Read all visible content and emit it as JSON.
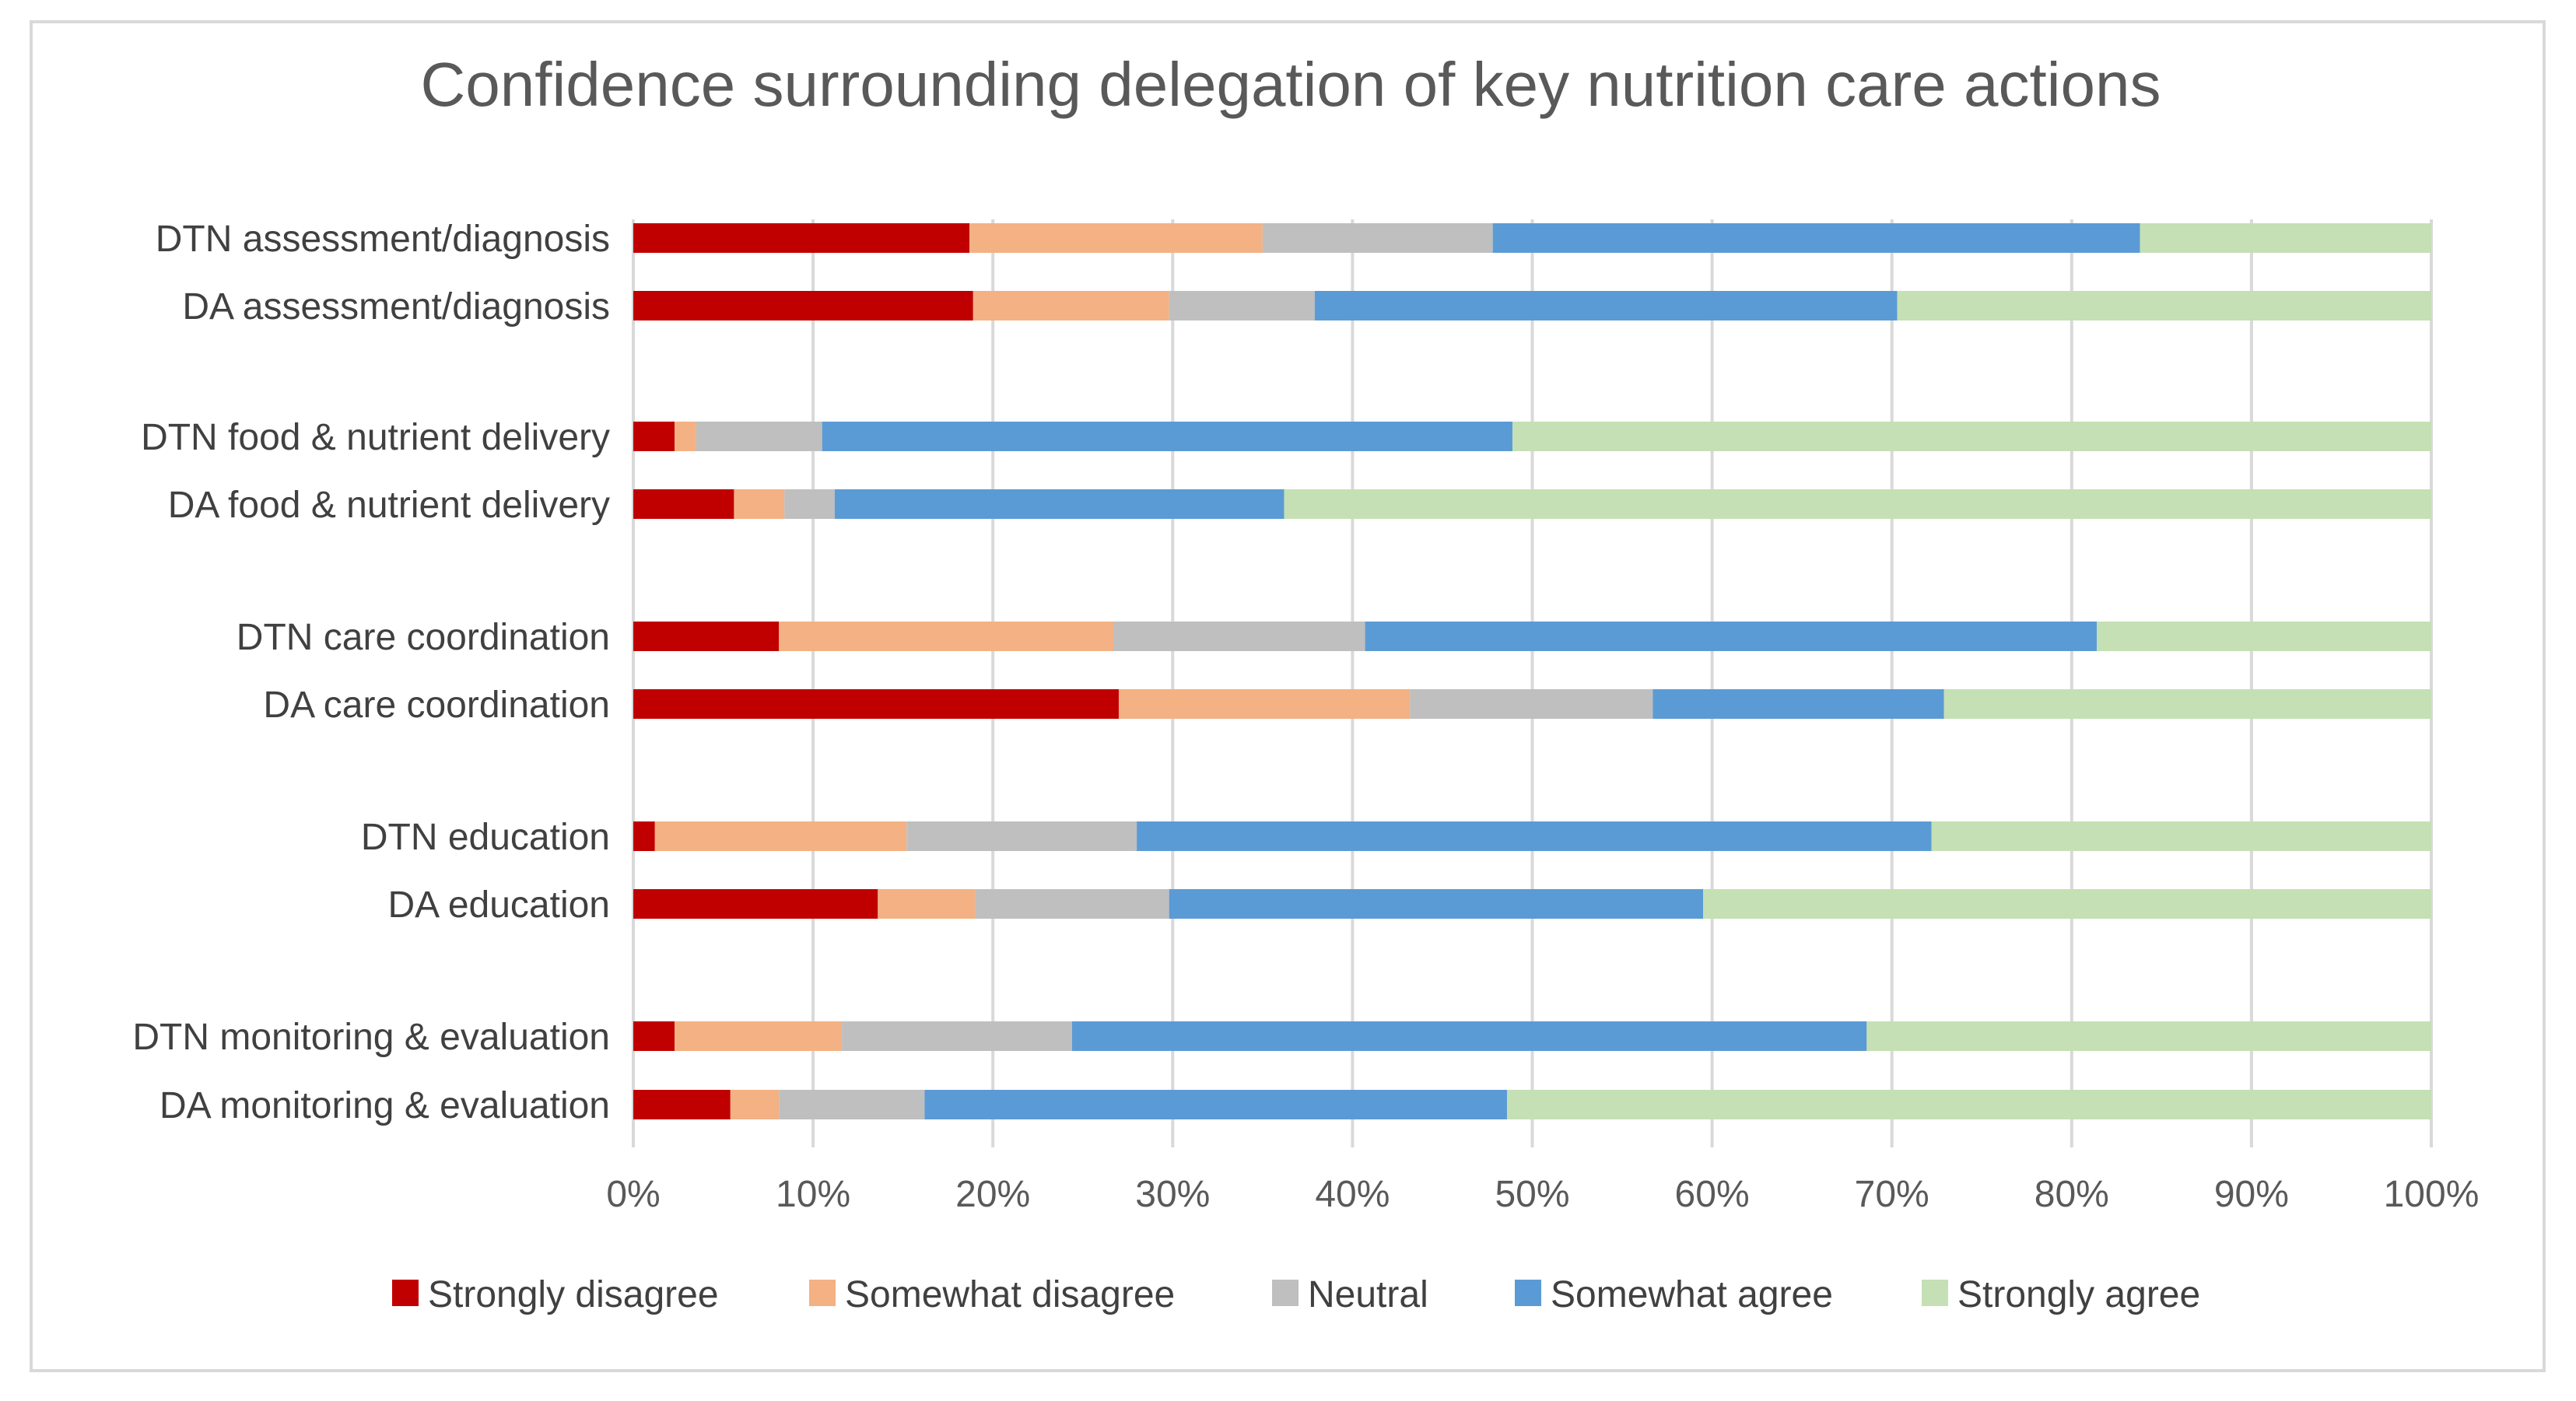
{
  "chart_data": {
    "type": "bar",
    "orientation": "horizontal",
    "stacked": "percent",
    "title": "Confidence surrounding delegation of key nutrition care actions",
    "xlabel": "",
    "ylabel": "",
    "xlim": [
      0,
      100
    ],
    "x_ticks": [
      "0%",
      "10%",
      "20%",
      "30%",
      "40%",
      "50%",
      "60%",
      "70%",
      "80%",
      "90%",
      "100%"
    ],
    "grid": true,
    "legend_position": "bottom",
    "categories": [
      "DTN assessment/diagnosis",
      "DA assessment/diagnosis",
      "DTN food & nutrient delivery",
      "DA food & nutrient delivery",
      "DTN care coordination",
      "DA care coordination",
      "DTN education",
      "DA education",
      "DTN monitoring & evaluation",
      "DA monitoring & evaluation"
    ],
    "series": [
      {
        "name": "Strongly disagree",
        "color": "#c00000",
        "values": [
          18.7,
          18.9,
          2.3,
          5.6,
          8.1,
          27.0,
          1.2,
          13.6,
          2.3,
          5.4
        ]
      },
      {
        "name": "Somewhat disagree",
        "color": "#f4b183",
        "values": [
          16.3,
          10.9,
          1.2,
          2.8,
          18.6,
          16.2,
          14.0,
          5.4,
          9.3,
          2.7
        ]
      },
      {
        "name": "Neutral",
        "color": "#bfbfbf",
        "values": [
          12.8,
          8.1,
          7.0,
          2.8,
          14.0,
          13.5,
          12.8,
          10.8,
          12.8,
          8.1
        ]
      },
      {
        "name": "Somewhat agree",
        "color": "#5b9bd5",
        "values": [
          36.0,
          32.4,
          38.4,
          25.0,
          40.7,
          16.2,
          44.2,
          29.7,
          44.2,
          32.4
        ]
      },
      {
        "name": "Strongly agree",
        "color": "#c5e0b4",
        "values": [
          16.2,
          29.7,
          51.1,
          63.8,
          18.6,
          27.1,
          27.8,
          40.5,
          31.4,
          51.4
        ]
      }
    ]
  }
}
